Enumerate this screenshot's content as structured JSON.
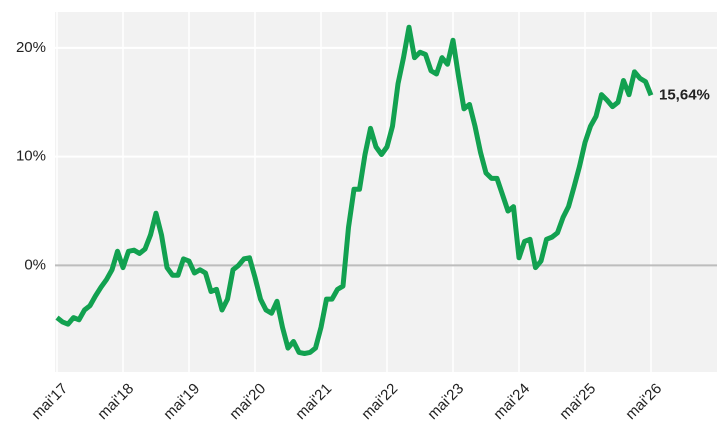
{
  "chart_data": {
    "type": "line",
    "categories": [
      "mai'17",
      null,
      null,
      null,
      null,
      null,
      null,
      null,
      null,
      null,
      null,
      null,
      "mai'18",
      null,
      null,
      null,
      null,
      null,
      null,
      null,
      null,
      null,
      null,
      null,
      "mai'19",
      null,
      null,
      null,
      null,
      null,
      null,
      null,
      null,
      null,
      null,
      null,
      "mai'20",
      null,
      null,
      null,
      null,
      null,
      null,
      null,
      null,
      null,
      null,
      null,
      "mai'21",
      null,
      null,
      null,
      null,
      null,
      null,
      null,
      null,
      null,
      null,
      null,
      "mai'22",
      null,
      null,
      null,
      null,
      null,
      null,
      null,
      null,
      null,
      null,
      null,
      "mai'23",
      null,
      null,
      null,
      null,
      null,
      null,
      null,
      null,
      null,
      null,
      null,
      "mai'24",
      null,
      null,
      null,
      null,
      null,
      null,
      null,
      null,
      null,
      null,
      null,
      "mai'25",
      null,
      null,
      null,
      null,
      null,
      null,
      null,
      null,
      null,
      null,
      null,
      "mai'26"
    ],
    "series": [
      {
        "color": "#12a150",
        "values": [
          -4.8,
          -5.2,
          -5.4,
          -4.8,
          -5.0,
          -4.1,
          -3.7,
          -2.8,
          -2.0,
          -1.3,
          -0.4,
          1.3,
          -0.2,
          1.3,
          1.4,
          1.1,
          1.5,
          2.8,
          4.8,
          2.8,
          -0.2,
          -0.9,
          -0.9,
          0.6,
          0.4,
          -0.7,
          -0.4,
          -0.7,
          -2.4,
          -2.2,
          -4.1,
          -3.1,
          -0.4,
          0,
          0.6,
          0.7,
          -1.1,
          -3.1,
          -4.1,
          -4.4,
          -3.3,
          -5.7,
          -7.6,
          -7.0,
          -8.0,
          -8.1,
          -8.0,
          -7.6,
          -5.7,
          -3.1,
          -3.1,
          -2.2,
          -1.9,
          3.5,
          7.0,
          7.0,
          10.2,
          12.6,
          10.9,
          10.2,
          10.9,
          12.8,
          16.7,
          19.1,
          21.9,
          19.1,
          19.6,
          19.4,
          17.9,
          17.6,
          19.1,
          18.5,
          20.7,
          17.4,
          14.4,
          14.8,
          12.8,
          10.4,
          8.5,
          8.0,
          8.0,
          6.5,
          5.0,
          5.4,
          0.7,
          2.2,
          2.4,
          -0.2,
          0.4,
          2.4,
          2.6,
          3.0,
          4.4,
          5.4,
          7.2,
          9.1,
          11.3,
          12.8,
          13.7,
          15.7,
          15.2,
          14.6,
          15.0,
          17.0,
          15.7,
          17.8,
          17.2,
          16.9,
          15.64
        ]
      }
    ],
    "last_value_label": "15,64%",
    "ylim": [
      -9.8,
      23.3
    ],
    "yticks": [
      {
        "value": 0,
        "label": "0%"
      },
      {
        "value": 10,
        "label": "10%"
      },
      {
        "value": 20,
        "label": "20%"
      }
    ],
    "grid": true
  }
}
